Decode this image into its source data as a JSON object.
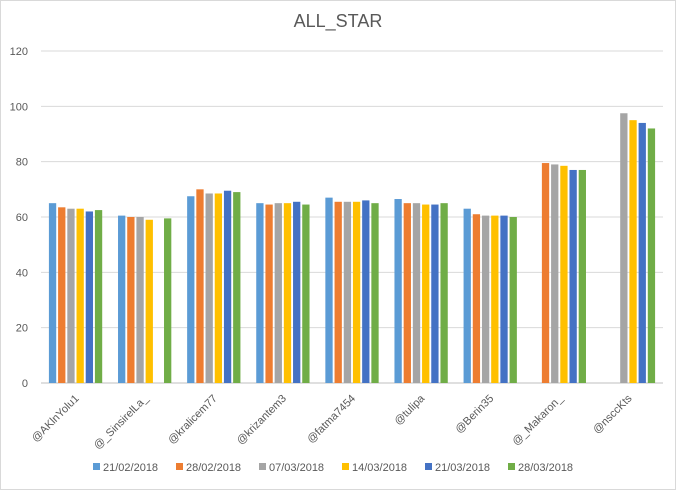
{
  "chart_data": {
    "type": "bar",
    "title": "ALL_STAR",
    "xlabel": "",
    "ylabel": "",
    "ylim": [
      0,
      120
    ],
    "yticks": [
      0,
      20,
      40,
      60,
      80,
      100,
      120
    ],
    "grid": true,
    "legend_position": "bottom",
    "categories": [
      "@AKlnYolu1",
      "@_SinsirelLa_",
      "@kralicem77",
      "@krizantem3",
      "@fatma7454",
      "@tulipa",
      "@Berin35",
      "@_Makaron_",
      "@nsccKts"
    ],
    "series": [
      {
        "name": "21/02/2018",
        "color": "#5b9bd5",
        "values": [
          65,
          60.5,
          67.5,
          65,
          67,
          66.5,
          63,
          null,
          null
        ]
      },
      {
        "name": "28/02/2018",
        "color": "#ed7d31",
        "values": [
          63.5,
          60,
          70,
          64.5,
          65.5,
          65,
          61,
          79.5,
          null
        ]
      },
      {
        "name": "07/03/2018",
        "color": "#a5a5a5",
        "values": [
          63,
          60,
          68.5,
          65,
          65.5,
          65,
          60.5,
          79,
          97.5
        ]
      },
      {
        "name": "14/03/2018",
        "color": "#ffc000",
        "values": [
          63,
          59,
          68.5,
          65,
          65.5,
          64.5,
          60.5,
          78.5,
          95
        ]
      },
      {
        "name": "21/03/2018",
        "color": "#4472c4",
        "values": [
          62,
          null,
          69.5,
          65.5,
          66,
          64.5,
          60.5,
          77,
          94
        ]
      },
      {
        "name": "28/03/2018",
        "color": "#70ad47",
        "values": [
          62.5,
          59.5,
          69,
          64.5,
          65,
          65,
          60,
          77,
          92
        ]
      }
    ]
  }
}
